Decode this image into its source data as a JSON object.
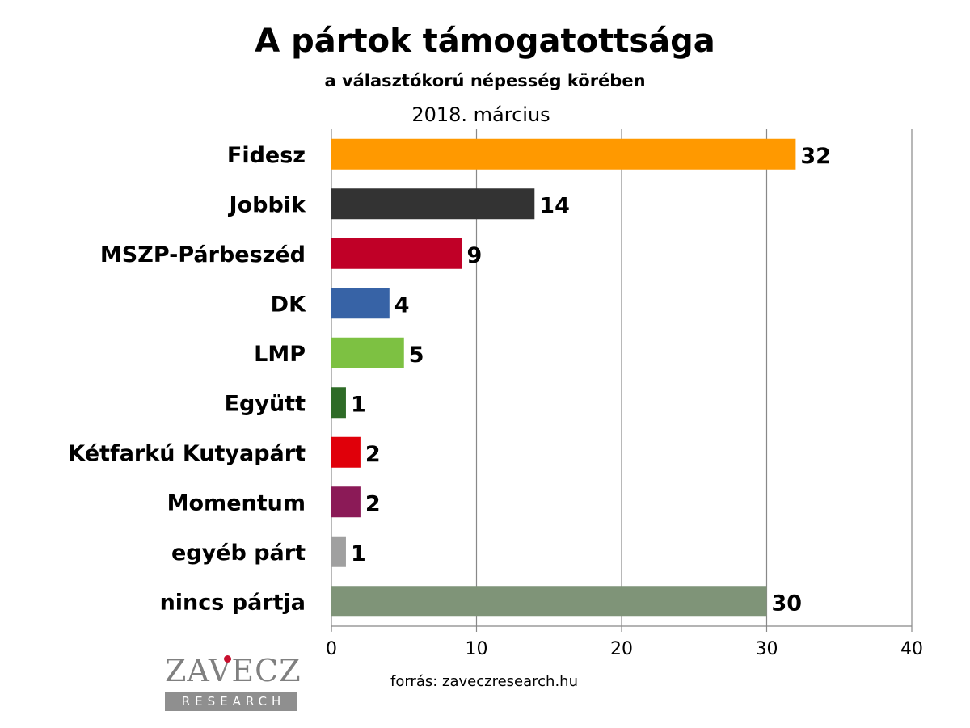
{
  "chart_data": {
    "type": "bar",
    "orientation": "horizontal",
    "title": "A pártok támogatottsága",
    "subtitle": "a választókorú népesség körében",
    "date_label": "2018. március",
    "categories": [
      "Fidesz",
      "Jobbik",
      "MSZP-Párbeszéd",
      "DK",
      "LMP",
      "Együtt",
      "Kétfarkú Kutyapárt",
      "Momentum",
      "egyéb párt",
      "nincs pártja"
    ],
    "values": [
      32,
      14,
      9,
      4,
      5,
      1,
      2,
      2,
      1,
      30
    ],
    "colors": [
      "#ff9900",
      "#333333",
      "#c00027",
      "#3763a6",
      "#7dc142",
      "#2e6b27",
      "#e0000a",
      "#8b1a57",
      "#a0a0a0",
      "#7f9478"
    ],
    "xlim": [
      0,
      40
    ],
    "xticks": [
      0,
      10,
      20,
      30,
      40
    ],
    "grid": true,
    "legend": "none",
    "source": "forrás: zaveczresearch.hu"
  },
  "logo": {
    "word": "ZAVECZ",
    "sub": "RESEARCH"
  }
}
